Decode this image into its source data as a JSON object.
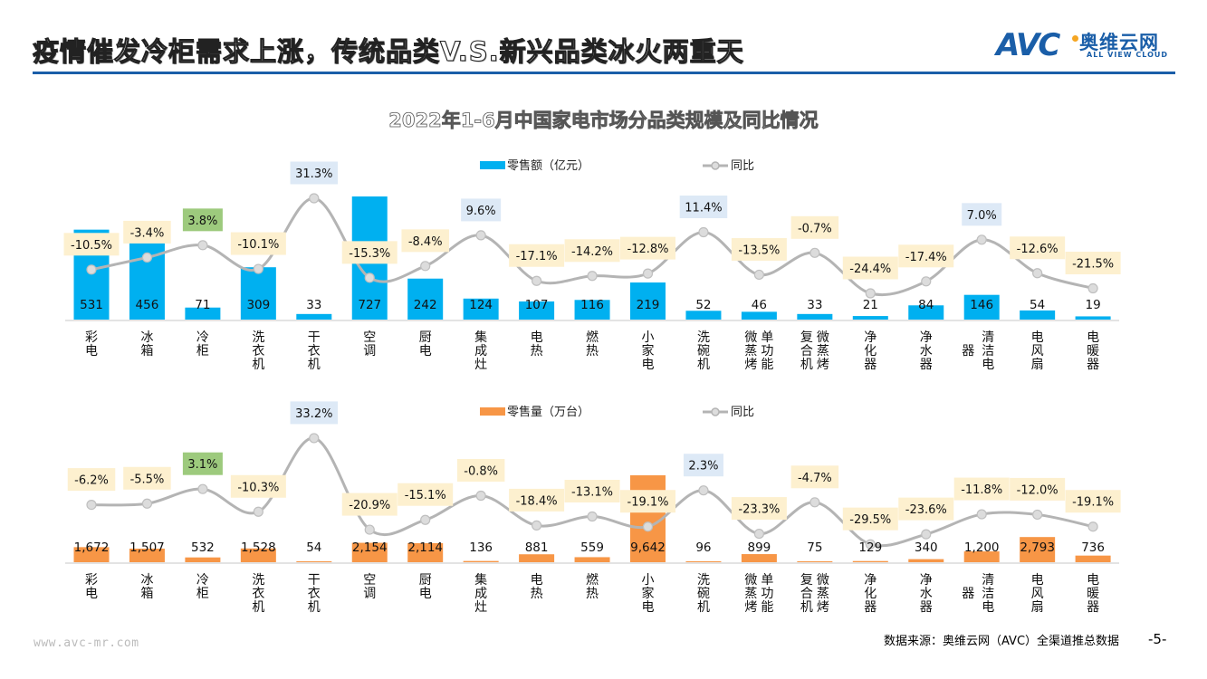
{
  "header": {
    "title": "疫情催发冷柜需求上涨，传统品类V.S.新兴品类冰火两重天",
    "logo_mark": "AVC",
    "logo_cn": "奥维云网",
    "logo_en": "ALL VIEW CLOUD"
  },
  "colors": {
    "brand": "#1a5ea8",
    "sales_bar": "#00b0f0",
    "volume_bar": "#f79646",
    "line": "#b4b4b4",
    "label_negative_bg": "#fdf0cf",
    "label_positive_bg": "#dde9f6",
    "label_highlight_bg": "#9dca7d"
  },
  "chart_title": "2022年1-6月中国家电市场分品类规模及同比情况",
  "chart_data": [
    {
      "type": "bar+line",
      "title": "2022年1-6月中国家电市场分品类规模及同比情况",
      "legend": {
        "bar": "零售额（亿元）",
        "line": "同比",
        "placement": "top-center"
      },
      "categories": [
        "彩电",
        "冰箱",
        "冷柜",
        "洗衣机",
        "干衣机",
        "空调",
        "厨电",
        "集成灶",
        "电热",
        "燃热",
        "小家电",
        "洗碗机",
        "微蒸烤单功能",
        "复合机微蒸烤",
        "净化器",
        "净水器",
        "清洁电器",
        "电风扇",
        "电暖器"
      ],
      "category_labels": [
        [
          "彩",
          "电"
        ],
        [
          "冰",
          "箱"
        ],
        [
          "冷",
          "柜"
        ],
        [
          "洗",
          "衣",
          "机"
        ],
        [
          "干",
          "衣",
          "机"
        ],
        [
          "空",
          "调"
        ],
        [
          "厨",
          "电"
        ],
        [
          "集",
          "成",
          "灶"
        ],
        [
          "电",
          "热"
        ],
        [
          "燃",
          "热"
        ],
        [
          "小",
          "家",
          "电"
        ],
        [
          "洗",
          "碗",
          "机"
        ],
        [
          "微蒸烤",
          "单功能"
        ],
        [
          "复合机",
          "微蒸烤"
        ],
        [
          "净",
          "化",
          "器"
        ],
        [
          "净",
          "水",
          "器"
        ],
        [
          "器",
          "清洁电"
        ],
        [
          "电",
          "风",
          "扇"
        ],
        [
          "电",
          "暖",
          "器"
        ]
      ],
      "series": [
        {
          "name": "零售额（亿元）",
          "kind": "bar",
          "values": [
            531,
            456,
            71,
            309,
            33,
            727,
            242,
            124,
            107,
            116,
            219,
            52,
            46,
            33,
            21,
            84,
            146,
            54,
            19
          ],
          "labels": [
            "531",
            "456",
            "71",
            "309",
            "33",
            "727",
            "242",
            "124",
            "107",
            "116",
            "219",
            "52",
            "46",
            "33",
            "21",
            "84",
            "146",
            "54",
            "19"
          ]
        },
        {
          "name": "同比",
          "kind": "line",
          "values": [
            -10.5,
            -3.4,
            3.8,
            -10.1,
            31.3,
            -15.3,
            -8.4,
            9.6,
            -17.1,
            -14.2,
            -12.8,
            11.4,
            -13.5,
            -0.7,
            -24.4,
            -17.4,
            7.0,
            -12.6,
            -21.5
          ],
          "labels": [
            "-10.5%",
            "-3.4%",
            "3.8%",
            "-10.1%",
            "31.3%",
            "-15.3%",
            "-8.4%",
            "9.6%",
            "-17.1%",
            "-14.2%",
            "-12.8%",
            "11.4%",
            "-13.5%",
            "-0.7%",
            "-24.4%",
            "-17.4%",
            "7.0%",
            "-12.6%",
            "-21.5%"
          ]
        }
      ],
      "ylim_bar": [
        0,
        750
      ],
      "ylim_line": [
        -40,
        40
      ],
      "grid": false
    },
    {
      "type": "bar+line",
      "legend": {
        "bar": "零售量（万台）",
        "line": "同比",
        "placement": "top-center"
      },
      "categories": [
        "彩电",
        "冰箱",
        "冷柜",
        "洗衣机",
        "干衣机",
        "空调",
        "厨电",
        "集成灶",
        "电热",
        "燃热",
        "小家电",
        "洗碗机",
        "微蒸烤单功能",
        "复合机微蒸烤",
        "净化器",
        "净水器",
        "清洁电器",
        "电风扇",
        "电暖器"
      ],
      "category_labels": [
        [
          "彩",
          "电"
        ],
        [
          "冰",
          "箱"
        ],
        [
          "冷",
          "柜"
        ],
        [
          "洗",
          "衣",
          "机"
        ],
        [
          "干",
          "衣",
          "机"
        ],
        [
          "空",
          "调"
        ],
        [
          "厨",
          "电"
        ],
        [
          "集",
          "成",
          "灶"
        ],
        [
          "电",
          "热"
        ],
        [
          "燃",
          "热"
        ],
        [
          "小",
          "家",
          "电"
        ],
        [
          "洗",
          "碗",
          "机"
        ],
        [
          "微蒸烤",
          "单功能"
        ],
        [
          "复合机",
          "微蒸烤"
        ],
        [
          "净",
          "化",
          "器"
        ],
        [
          "净",
          "水",
          "器"
        ],
        [
          "器",
          "清洁电"
        ],
        [
          "电",
          "风",
          "扇"
        ],
        [
          "电",
          "暖",
          "器"
        ]
      ],
      "series": [
        {
          "name": "零售量（万台）",
          "kind": "bar",
          "values": [
            1672,
            1507,
            532,
            1528,
            54,
            2154,
            2114,
            136,
            881,
            559,
            9642,
            96,
            899,
            75,
            129,
            340,
            1200,
            2793,
            736
          ],
          "labels": [
            "1,672",
            "1,507",
            "532",
            "1,528",
            "54",
            "2,154",
            "2,114",
            "136",
            "881",
            "559",
            "9,642",
            "96",
            "899",
            "75",
            "129",
            "340",
            "1,200",
            "2,793",
            "736"
          ]
        },
        {
          "name": "同比",
          "kind": "line",
          "values": [
            -6.2,
            -5.5,
            3.1,
            -10.3,
            33.2,
            -20.9,
            -15.1,
            -0.8,
            -18.4,
            -13.1,
            -19.1,
            2.3,
            -23.3,
            -4.7,
            -29.5,
            -23.6,
            -11.8,
            -12.0,
            -19.1
          ],
          "labels": [
            "-6.2%",
            "-5.5%",
            "3.1%",
            "-10.3%",
            "33.2%",
            "-20.9%",
            "-15.1%",
            "-0.8%",
            "-18.4%",
            "-13.1%",
            "-19.1%",
            "2.3%",
            "-23.3%",
            "-4.7%",
            "-29.5%",
            "-23.6%",
            "-11.8%",
            "-12.0%",
            "-19.1%"
          ]
        }
      ],
      "ylim_bar": [
        0,
        10000
      ],
      "ylim_line": [
        -40,
        40
      ],
      "grid": false
    }
  ],
  "highlight_category_index": 2,
  "footer": {
    "url": "www.avc-mr.com",
    "source": "数据来源：奥维云网（AVC）全渠道推总数据",
    "page": "-5-"
  }
}
